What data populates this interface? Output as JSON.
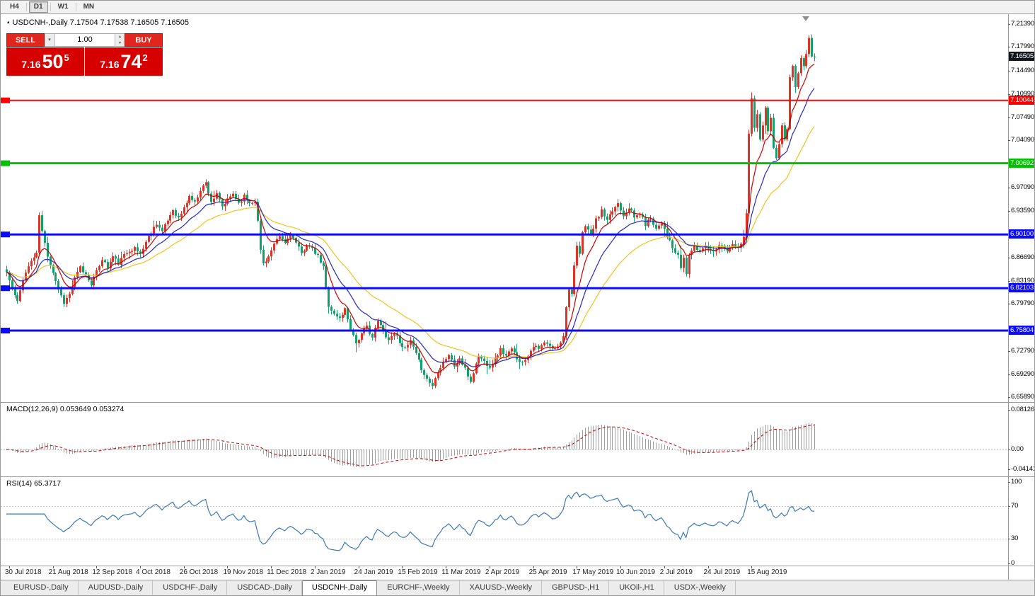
{
  "ui_colors": {
    "toolbar_bg": "#f2f2f2",
    "tabbar_bg": "#ececec",
    "panel_button_red": "#e2251d",
    "price_box_red": "#d60000",
    "current_price_bg": "#10151e"
  },
  "toolbar": {
    "buttons": [
      {
        "label": "H4",
        "active": false
      },
      {
        "label": "D1",
        "active": true
      },
      {
        "label": "W1",
        "active": false
      },
      {
        "label": "MN",
        "active": false
      }
    ]
  },
  "chart_header": {
    "collapse_icon": "▴",
    "text": "USDCNH-,Daily 7.17504 7.17538 7.16505 7.16505"
  },
  "trade_panel": {
    "sell_label": "SELL",
    "buy_label": "BUY",
    "volume": "1.00",
    "dropdown_icon": "▾",
    "spin_up_icon": "▴",
    "spin_down_icon": "▾",
    "bid_small": "7.16",
    "bid_big": "50",
    "bid_sup": "5",
    "ask_small": "7.16",
    "ask_big": "74",
    "ask_sup": "2"
  },
  "price_axis": {
    "ticks": [
      {
        "text": "7.21390",
        "value": 7.2139
      },
      {
        "text": "7.17990",
        "value": 7.1799
      },
      {
        "text": "7.14490",
        "value": 7.1449
      },
      {
        "text": "7.10990",
        "value": 7.1099
      },
      {
        "text": "7.07490",
        "value": 7.0749
      },
      {
        "text": "7.04090",
        "value": 7.0409
      },
      {
        "text": "6.97090",
        "value": 6.9709
      },
      {
        "text": "6.93590",
        "value": 6.9359
      },
      {
        "text": "6.86690",
        "value": 6.8669
      },
      {
        "text": "6.83190",
        "value": 6.8319
      },
      {
        "text": "6.79790",
        "value": 6.7979
      },
      {
        "text": "6.72790",
        "value": 6.7279
      },
      {
        "text": "6.69290",
        "value": 6.6929
      },
      {
        "text": "6.65890",
        "value": 6.6589
      }
    ],
    "line_labels": [
      {
        "text": "7.16505",
        "value": 7.16505,
        "bg": "#10151e",
        "name": "current-price-label"
      },
      {
        "text": "7.10044",
        "value": 7.10044,
        "bg": "#ff0000",
        "name": "red-hline-label"
      },
      {
        "text": "7.00692",
        "value": 7.00692,
        "bg": "#00c000",
        "name": "green-hline-label"
      },
      {
        "text": "6.90100",
        "value": 6.901,
        "bg": "#0a0aff",
        "name": "blue-hline-label"
      },
      {
        "text": "6.82103",
        "value": 6.82103,
        "bg": "#0a0aff",
        "name": "blue-hline-label"
      },
      {
        "text": "6.75804",
        "value": 6.75804,
        "bg": "#0a0aff",
        "name": "blue-hline-label"
      }
    ]
  },
  "macd_panel": {
    "header": "MACD(12,26,9) 0.053649 0.053274",
    "axis_labels": [
      {
        "text": "0.081265",
        "value": 0.081265
      },
      {
        "text": "0.00",
        "value": 0
      },
      {
        "text": "-0.041412",
        "value": -0.041412
      }
    ]
  },
  "rsi_panel": {
    "header": "RSI(14) 65.3717",
    "axis_labels": [
      {
        "text": "100",
        "value": 100
      },
      {
        "text": "70",
        "value": 70
      },
      {
        "text": "30",
        "value": 30
      },
      {
        "text": "0",
        "value": 0
      }
    ]
  },
  "date_axis": {
    "first_candle_index": 1,
    "candles_per_label": 16,
    "labels": [
      "30 Jul 2018",
      "21 Aug 2018",
      "12 Sep 2018",
      "4 Oct 2018",
      "26 Oct 2018",
      "19 Nov 2018",
      "11 Dec 2018",
      "2 Jan 2019",
      "24 Jan 2019",
      "15 Feb 2019",
      "11 Mar 2019",
      "2 Apr 2019",
      "25 Apr 2019",
      "17 May 2019",
      "10 Jun 2019",
      "2 Jul 2019",
      "24 Jul 2019",
      "15 Aug 2019"
    ]
  },
  "tabs": {
    "items": [
      {
        "label": "EURUSD-,Daily",
        "active": false
      },
      {
        "label": "AUDUSD-,Daily",
        "active": false
      },
      {
        "label": "USDCHF-,Daily",
        "active": false
      },
      {
        "label": "USDCAD-,Daily",
        "active": false
      },
      {
        "label": "USDCNH-,Daily",
        "active": true
      },
      {
        "label": "EURCHF-,Weekly",
        "active": false
      },
      {
        "label": "XAUUSD-,Weekly",
        "active": false
      },
      {
        "label": "GBPUSD-,H1",
        "active": false
      },
      {
        "label": "UKOil-,H1",
        "active": false
      },
      {
        "label": "USDX-,Weekly",
        "active": false
      }
    ]
  },
  "chart_data": {
    "type": "candlestick",
    "symbol": "USDCNH-",
    "timeframe": "Daily",
    "current_ohlc": {
      "open": 7.17504,
      "high": 7.17538,
      "low": 7.16505,
      "close": 7.16505
    },
    "price_view": {
      "max": 7.2276,
      "min": 6.6517
    },
    "num_candles": 297,
    "seed": 11,
    "noise": 0.003,
    "close_anchors": [
      [
        0,
        6.845
      ],
      [
        2,
        6.82
      ],
      [
        4,
        6.8
      ],
      [
        6,
        6.835
      ],
      [
        9,
        6.862
      ],
      [
        11,
        6.872
      ],
      [
        12,
        6.93
      ],
      [
        13,
        6.905
      ],
      [
        15,
        6.87
      ],
      [
        17,
        6.845
      ],
      [
        19,
        6.82
      ],
      [
        21,
        6.8
      ],
      [
        23,
        6.812
      ],
      [
        25,
        6.835
      ],
      [
        27,
        6.852
      ],
      [
        29,
        6.84
      ],
      [
        31,
        6.828
      ],
      [
        33,
        6.845
      ],
      [
        35,
        6.865
      ],
      [
        37,
        6.852
      ],
      [
        39,
        6.868
      ],
      [
        41,
        6.858
      ],
      [
        43,
        6.87
      ],
      [
        45,
        6.878
      ],
      [
        47,
        6.88
      ],
      [
        49,
        6.872
      ],
      [
        51,
        6.89
      ],
      [
        53,
        6.905
      ],
      [
        55,
        6.918
      ],
      [
        57,
        6.905
      ],
      [
        59,
        6.922
      ],
      [
        61,
        6.938
      ],
      [
        63,
        6.925
      ],
      [
        65,
        6.94
      ],
      [
        67,
        6.958
      ],
      [
        69,
        6.948
      ],
      [
        71,
        6.968
      ],
      [
        73,
        6.978
      ],
      [
        75,
        6.95
      ],
      [
        77,
        6.96
      ],
      [
        79,
        6.942
      ],
      [
        81,
        6.952
      ],
      [
        83,
        6.962
      ],
      [
        85,
        6.948
      ],
      [
        87,
        6.958
      ],
      [
        89,
        6.948
      ],
      [
        91,
        6.952
      ],
      [
        92,
        6.92
      ],
      [
        93,
        6.878
      ],
      [
        94,
        6.858
      ],
      [
        96,
        6.868
      ],
      [
        98,
        6.885
      ],
      [
        100,
        6.898
      ],
      [
        102,
        6.888
      ],
      [
        104,
        6.902
      ],
      [
        106,
        6.888
      ],
      [
        108,
        6.872
      ],
      [
        110,
        6.886
      ],
      [
        112,
        6.878
      ],
      [
        114,
        6.868
      ],
      [
        116,
        6.852
      ],
      [
        117,
        6.82
      ],
      [
        118,
        6.796
      ],
      [
        120,
        6.782
      ],
      [
        122,
        6.776
      ],
      [
        124,
        6.79
      ],
      [
        126,
        6.762
      ],
      [
        128,
        6.74
      ],
      [
        130,
        6.752
      ],
      [
        132,
        6.764
      ],
      [
        134,
        6.748
      ],
      [
        136,
        6.772
      ],
      [
        138,
        6.758
      ],
      [
        140,
        6.744
      ],
      [
        142,
        6.756
      ],
      [
        144,
        6.742
      ],
      [
        146,
        6.73
      ],
      [
        148,
        6.742
      ],
      [
        150,
        6.722
      ],
      [
        152,
        6.702
      ],
      [
        154,
        6.686
      ],
      [
        156,
        6.676
      ],
      [
        158,
        6.698
      ],
      [
        160,
        6.712
      ],
      [
        162,
        6.722
      ],
      [
        164,
        6.705
      ],
      [
        166,
        6.716
      ],
      [
        168,
        6.7
      ],
      [
        170,
        6.682
      ],
      [
        171,
        6.696
      ],
      [
        173,
        6.72
      ],
      [
        175,
        6.712
      ],
      [
        177,
        6.705
      ],
      [
        179,
        6.716
      ],
      [
        181,
        6.73
      ],
      [
        183,
        6.72
      ],
      [
        185,
        6.73
      ],
      [
        187,
        6.718
      ],
      [
        189,
        6.71
      ],
      [
        191,
        6.722
      ],
      [
        193,
        6.736
      ],
      [
        195,
        6.73
      ],
      [
        197,
        6.74
      ],
      [
        199,
        6.734
      ],
      [
        201,
        6.73
      ],
      [
        203,
        6.742
      ],
      [
        204,
        6.752
      ],
      [
        205,
        6.792
      ],
      [
        206,
        6.822
      ],
      [
        207,
        6.812
      ],
      [
        208,
        6.852
      ],
      [
        209,
        6.882
      ],
      [
        210,
        6.872
      ],
      [
        211,
        6.902
      ],
      [
        212,
        6.916
      ],
      [
        214,
        6.9
      ],
      [
        216,
        6.922
      ],
      [
        218,
        6.936
      ],
      [
        220,
        6.92
      ],
      [
        222,
        6.936
      ],
      [
        224,
        6.948
      ],
      [
        226,
        6.93
      ],
      [
        228,
        6.942
      ],
      [
        230,
        6.926
      ],
      [
        232,
        6.932
      ],
      [
        234,
        6.916
      ],
      [
        236,
        6.926
      ],
      [
        238,
        6.91
      ],
      [
        240,
        6.92
      ],
      [
        242,
        6.9
      ],
      [
        244,
        6.88
      ],
      [
        246,
        6.868
      ],
      [
        247,
        6.852
      ],
      [
        248,
        6.866
      ],
      [
        249,
        6.842
      ],
      [
        250,
        6.872
      ],
      [
        252,
        6.882
      ],
      [
        254,
        6.876
      ],
      [
        256,
        6.886
      ],
      [
        258,
        6.876
      ],
      [
        260,
        6.881
      ],
      [
        262,
        6.886
      ],
      [
        264,
        6.876
      ],
      [
        266,
        6.886
      ],
      [
        268,
        6.88
      ],
      [
        270,
        6.896
      ],
      [
        271,
        6.93
      ],
      [
        272,
        7.052
      ],
      [
        273,
        7.102
      ],
      [
        274,
        7.062
      ],
      [
        275,
        7.082
      ],
      [
        276,
        7.042
      ],
      [
        277,
        7.062
      ],
      [
        278,
        7.092
      ],
      [
        279,
        7.052
      ],
      [
        280,
        7.072
      ],
      [
        281,
        7.032
      ],
      [
        282,
        7.012
      ],
      [
        283,
        7.036
      ],
      [
        284,
        7.062
      ],
      [
        285,
        7.042
      ],
      [
        286,
        7.056
      ],
      [
        287,
        7.132
      ],
      [
        288,
        7.152
      ],
      [
        289,
        7.122
      ],
      [
        290,
        7.142
      ],
      [
        291,
        7.162
      ],
      [
        292,
        7.15
      ],
      [
        293,
        7.172
      ],
      [
        294,
        7.192
      ],
      [
        295,
        7.168
      ],
      [
        296,
        7.165
      ]
    ],
    "candle_colors": {
      "up": "#df3327",
      "down": "#11a26b"
    },
    "ma_lines": [
      {
        "period": 34,
        "color": "#eec41e"
      },
      {
        "period": 17,
        "color": "#2626c8"
      },
      {
        "period": 8,
        "color": "#c80000"
      }
    ],
    "hlines": [
      {
        "price": 7.10044,
        "color": "#ff0000",
        "width": 2
      },
      {
        "price": 7.00692,
        "color": "#00c000",
        "width": 3
      },
      {
        "price": 6.901,
        "color": "#0a0aff",
        "width": 3
      },
      {
        "price": 6.82103,
        "color": "#0a0aff",
        "width": 3
      },
      {
        "price": 6.75804,
        "color": "#0a0aff",
        "width": 3
      }
    ],
    "macd": {
      "fast": 12,
      "slow": 26,
      "signal": 9,
      "hist_color": "#9c9c9c",
      "signal_color": "#c80000",
      "view_max": 0.095,
      "view_min": -0.0555
    },
    "rsi": {
      "period": 14,
      "color": "#3b78b4",
      "levels": [
        70,
        30
      ]
    }
  }
}
